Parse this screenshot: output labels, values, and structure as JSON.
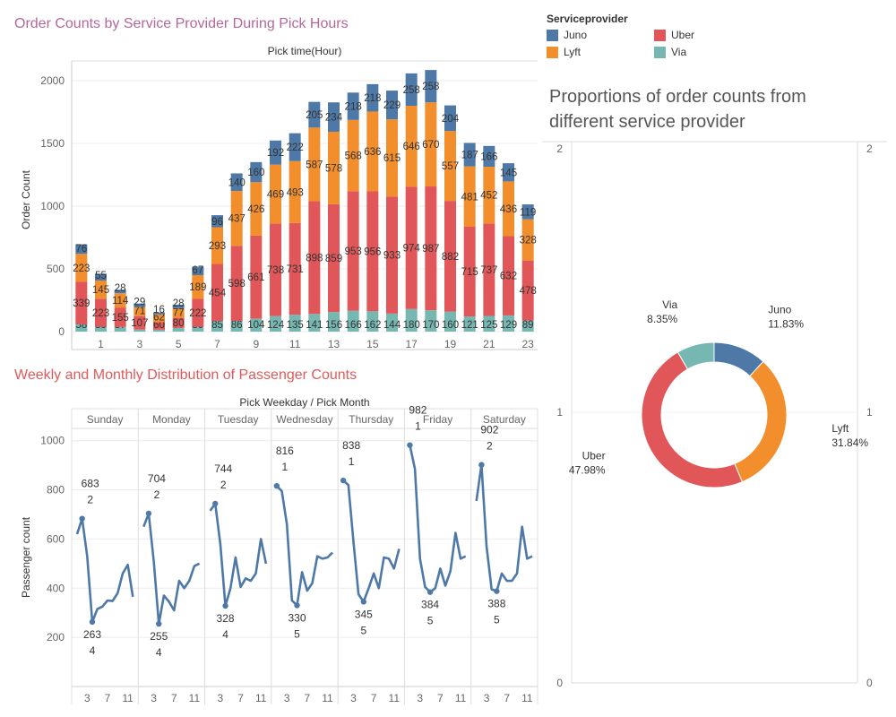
{
  "titles": {
    "orders": "Order Counts by Service Provider During Pick Hours",
    "weekly": "Weekly and Monthly Distribution of Passenger Counts",
    "proportions": "Proportions of order counts from different service provider"
  },
  "legend": {
    "title": "Serviceprovider",
    "items": [
      {
        "label": "Juno",
        "color": "#4e79a7"
      },
      {
        "label": "Uber",
        "color": "#e15759"
      },
      {
        "label": "Lyft",
        "color": "#f28e2b"
      },
      {
        "label": "Via",
        "color": "#76b7b2"
      }
    ]
  },
  "chart_data": [
    {
      "type": "bar",
      "stacked": true,
      "title": "Order Counts by Service Provider During Pick Hours",
      "header": "Pick time(Hour)",
      "xlabel": "",
      "ylabel": "Order Count",
      "ylim": [
        0,
        2100
      ],
      "yticks": [
        0,
        500,
        1000,
        1500,
        2000
      ],
      "xtick_labels": [
        "1",
        "3",
        "5",
        "7",
        "9",
        "11",
        "13",
        "15",
        "17",
        "19",
        "21",
        "23"
      ],
      "categories": [
        0,
        1,
        2,
        3,
        4,
        5,
        6,
        7,
        8,
        9,
        10,
        11,
        12,
        13,
        14,
        15,
        16,
        17,
        18,
        19,
        20,
        21,
        22,
        23
      ],
      "series": [
        {
          "name": "Via",
          "color": "#76b7b2",
          "values": [
            58,
            39,
            37,
            17,
            15,
            30,
            39,
            85,
            86,
            104,
            124,
            135,
            141,
            156,
            166,
            162,
            144,
            180,
            170,
            160,
            121,
            125,
            129,
            89
          ]
        },
        {
          "name": "Uber",
          "color": "#e15759",
          "values": [
            339,
            223,
            155,
            107,
            60,
            80,
            222,
            454,
            598,
            661,
            738,
            731,
            898,
            859,
            953,
            956,
            933,
            974,
            987,
            882,
            715,
            737,
            632,
            478
          ]
        },
        {
          "name": "Lyft",
          "color": "#f28e2b",
          "values": [
            223,
            145,
            114,
            71,
            62,
            77,
            189,
            293,
            437,
            426,
            469,
            493,
            587,
            578,
            568,
            636,
            615,
            646,
            670,
            557,
            481,
            452,
            436,
            328
          ]
        },
        {
          "name": "Juno",
          "color": "#4e79a7",
          "values": [
            76,
            55,
            28,
            29,
            16,
            28,
            67,
            96,
            140,
            160,
            192,
            222,
            205,
            234,
            218,
            218,
            229,
            258,
            258,
            204,
            187,
            166,
            145,
            119
          ]
        }
      ],
      "grid": true
    },
    {
      "type": "line",
      "title": "Weekly and Monthly Distribution of Passenger Counts",
      "header": "Pick Weekday / Pick Month",
      "ylabel": "Passenger count",
      "ylim": [
        0,
        1050
      ],
      "yticks": [
        200,
        400,
        600,
        800,
        1000
      ],
      "xtick_labels": [
        "3",
        "7",
        "11"
      ],
      "color": "#4e79a7",
      "panels": [
        {
          "name": "Sunday",
          "values": [
            620,
            683,
            530,
            263,
            315,
            325,
            350,
            348,
            380,
            460,
            495,
            365
          ],
          "annotations": [
            {
              "month": 2,
              "value": "683",
              "label": "2",
              "pos": "above"
            },
            {
              "month": 4,
              "value": "263",
              "label": "4",
              "pos": "below"
            }
          ]
        },
        {
          "name": "Monday",
          "values": [
            650,
            704,
            510,
            255,
            370,
            345,
            310,
            430,
            400,
            430,
            490,
            500
          ],
          "annotations": [
            {
              "month": 2,
              "value": "704",
              "label": "2",
              "pos": "above"
            },
            {
              "month": 4,
              "value": "255",
              "label": "4",
              "pos": "below"
            }
          ]
        },
        {
          "name": "Tuesday",
          "values": [
            715,
            744,
            580,
            328,
            400,
            525,
            405,
            440,
            430,
            460,
            600,
            500
          ],
          "annotations": [
            {
              "month": 2,
              "value": "744",
              "label": "2",
              "pos": "above"
            },
            {
              "month": 4,
              "value": "328",
              "label": "4",
              "pos": "below"
            }
          ]
        },
        {
          "name": "Wednesday",
          "values": [
            816,
            795,
            660,
            350,
            330,
            465,
            390,
            420,
            530,
            520,
            525,
            545
          ],
          "annotations": [
            {
              "month": 1,
              "value": "816",
              "label": "1",
              "pos": "above"
            },
            {
              "month": 5,
              "value": "330",
              "label": "5",
              "pos": "below"
            }
          ]
        },
        {
          "name": "Thursday",
          "values": [
            838,
            820,
            590,
            375,
            345,
            400,
            460,
            400,
            525,
            520,
            480,
            560
          ],
          "annotations": [
            {
              "month": 1,
              "value": "838",
              "label": "1",
              "pos": "above"
            },
            {
              "month": 5,
              "value": "345",
              "label": "5",
              "pos": "below"
            }
          ]
        },
        {
          "name": "Friday",
          "values": [
            982,
            885,
            520,
            405,
            384,
            400,
            480,
            410,
            470,
            625,
            520,
            530
          ],
          "annotations": [
            {
              "month": 1,
              "value": "982",
              "label": "1",
              "pos": "above"
            },
            {
              "month": 5,
              "value": "384",
              "label": "5",
              "pos": "below"
            }
          ]
        },
        {
          "name": "Saturday",
          "values": [
            755,
            902,
            570,
            395,
            388,
            460,
            430,
            430,
            460,
            650,
            520,
            530
          ],
          "annotations": [
            {
              "month": 2,
              "value": "902",
              "label": "2",
              "pos": "above"
            },
            {
              "month": 5,
              "value": "388",
              "label": "5",
              "pos": "below"
            }
          ]
        }
      ],
      "grid": true
    },
    {
      "type": "pie",
      "donut": true,
      "title": "Proportions of order counts from different service provider",
      "yticks": [
        0,
        1,
        2
      ],
      "slices": [
        {
          "label": "Juno",
          "value": 11.83,
          "text": "11.83%",
          "color": "#4e79a7"
        },
        {
          "label": "Lyft",
          "value": 31.84,
          "text": "31.84%",
          "color": "#f28e2b"
        },
        {
          "label": "Uber",
          "value": 47.98,
          "text": "47.98%",
          "color": "#e15759"
        },
        {
          "label": "Via",
          "value": 8.35,
          "text": "8.35%",
          "color": "#76b7b2"
        }
      ]
    }
  ]
}
